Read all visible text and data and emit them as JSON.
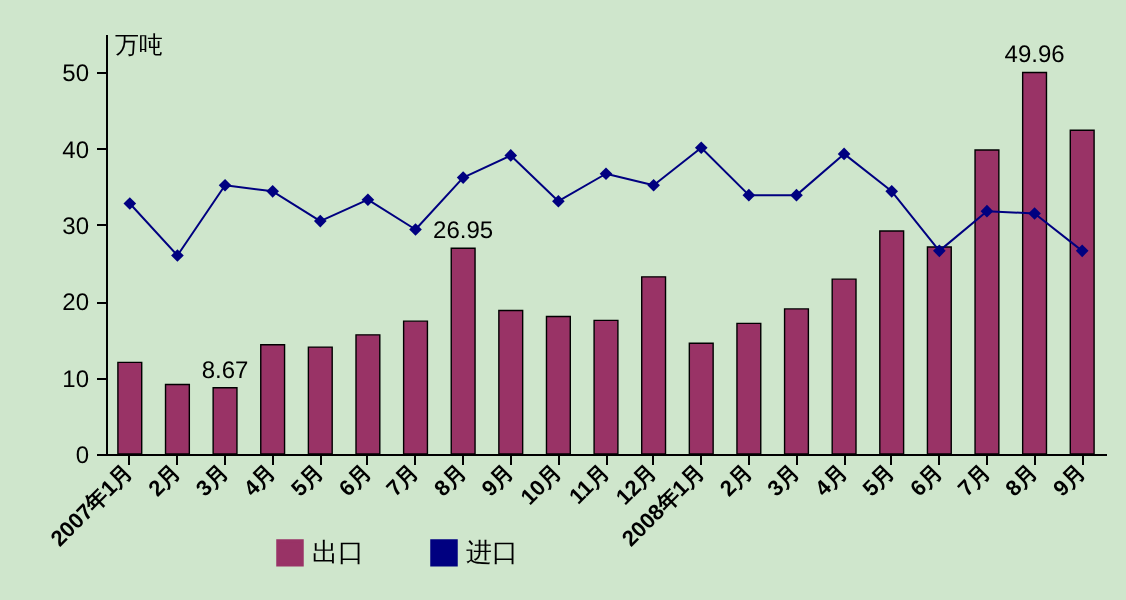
{
  "chart_data": {
    "type": "bar",
    "ylabel": "万吨",
    "categories": [
      "2007年1月",
      "2月",
      "3月",
      "4月",
      "5月",
      "6月",
      "7月",
      "8月",
      "9月",
      "10月",
      "11月",
      "12月",
      "2008年1月",
      "2月",
      "3月",
      "4月",
      "5月",
      "6月",
      "7月",
      "8月",
      "9月"
    ],
    "series": [
      {
        "name": "出口",
        "color": "#993366",
        "values": [
          12.0,
          9.1,
          8.67,
          14.3,
          14.0,
          15.6,
          17.4,
          26.95,
          18.8,
          18.0,
          17.5,
          23.2,
          14.5,
          17.1,
          19.0,
          22.9,
          29.2,
          27.1,
          39.8,
          49.96,
          42.4
        ],
        "value_labels": [
          null,
          null,
          "8.67",
          null,
          null,
          null,
          null,
          "26.95",
          null,
          null,
          null,
          null,
          null,
          null,
          null,
          null,
          null,
          null,
          null,
          "49.96",
          null
        ]
      },
      {
        "name": "进口",
        "type": "line",
        "color": "#000080",
        "marker": "diamond",
        "values": [
          32.8,
          26.0,
          35.2,
          34.4,
          30.5,
          33.3,
          29.4,
          36.2,
          39.1,
          33.1,
          36.7,
          35.2,
          40.1,
          33.9,
          33.9,
          39.3,
          34.4,
          26.6,
          31.8,
          31.5,
          26.6
        ]
      }
    ],
    "ylim": [
      0,
      55
    ],
    "yticks": [
      0,
      10,
      20,
      30,
      40,
      50
    ],
    "grid": false,
    "legend": "bottom"
  }
}
